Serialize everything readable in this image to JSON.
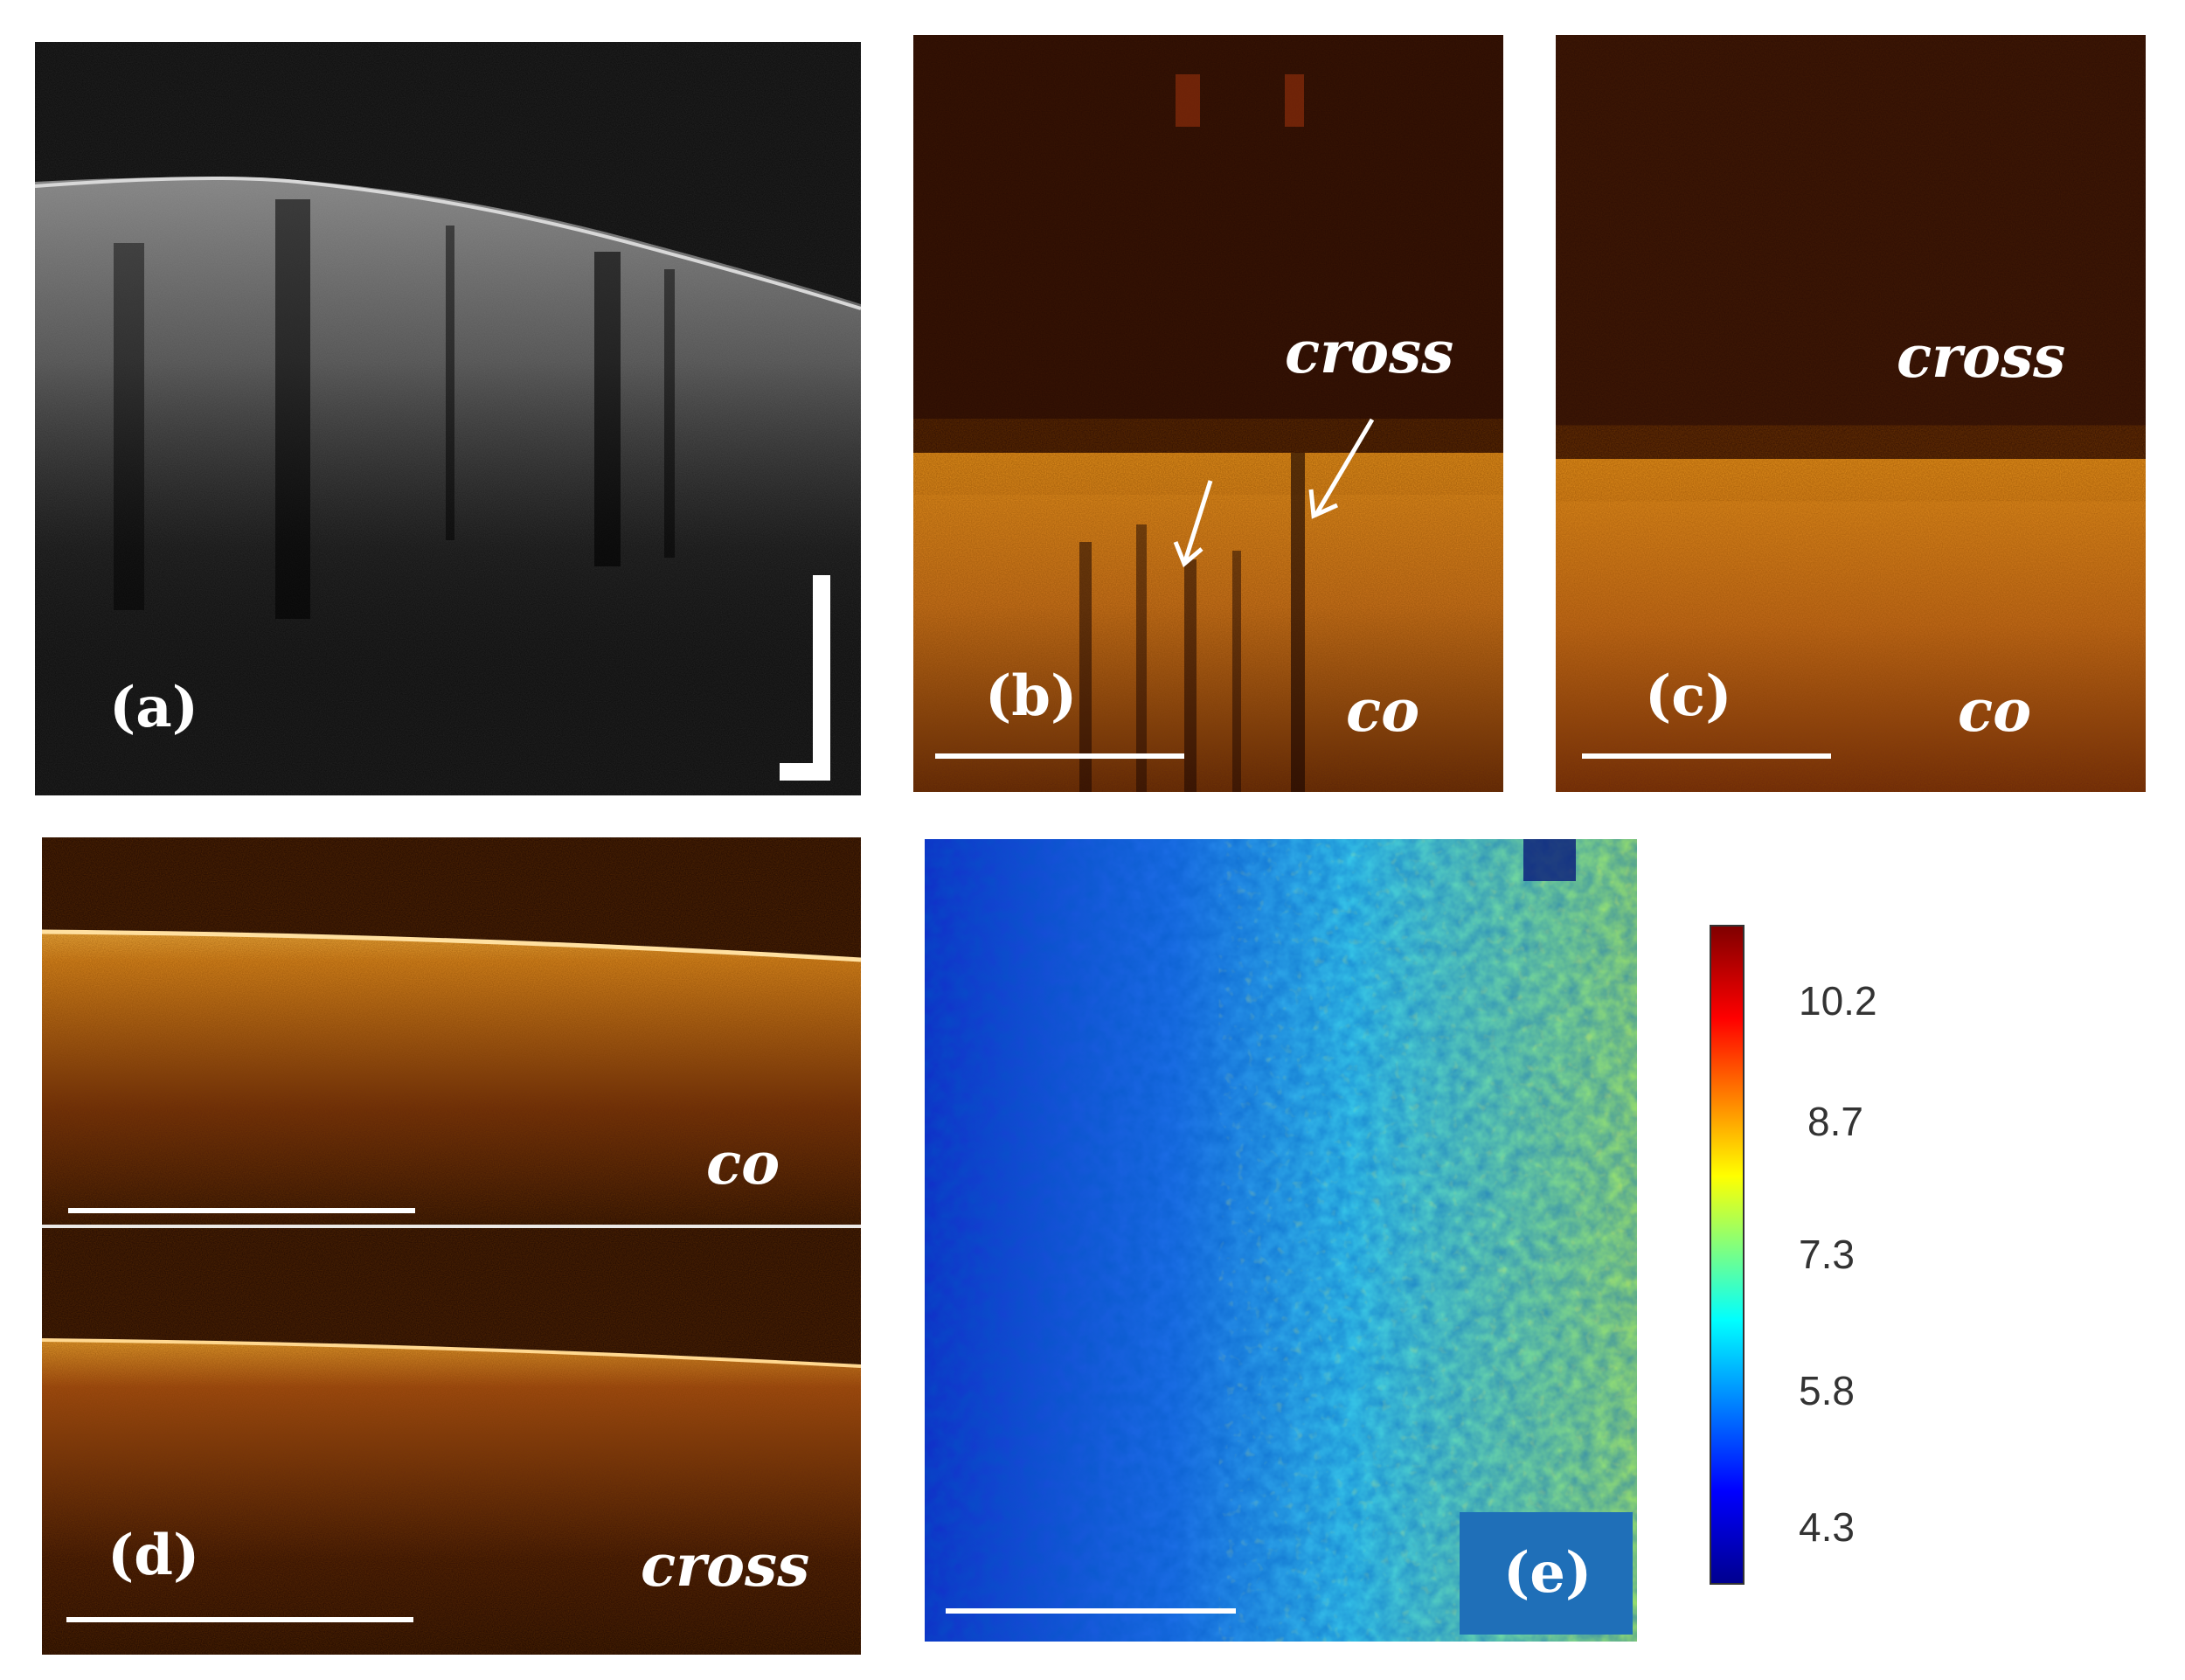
{
  "panels": {
    "a": {
      "label": "(a)"
    },
    "b": {
      "label": "(b)",
      "top_tag": "cross",
      "bottom_tag": "co"
    },
    "c": {
      "label": "(c)",
      "top_tag": "cross",
      "bottom_tag": "co"
    },
    "d": {
      "label": "(d)",
      "top_tag": "co",
      "bottom_tag": "cross"
    },
    "e": {
      "label": "(e)"
    }
  },
  "colorbar": {
    "ticks": [
      "10.2",
      "8.7",
      "7.3",
      "5.8",
      "4.3"
    ],
    "colors": [
      "#00008f",
      "#0000ff",
      "#00ffff",
      "#ffff00",
      "#ff0000",
      "#800000"
    ]
  },
  "colors": {
    "oct_gray": "#bfbfbf",
    "oct_orange": "#e08a1e",
    "oct_dark": "#2a0c04",
    "label_box": "#1f6fb8"
  }
}
